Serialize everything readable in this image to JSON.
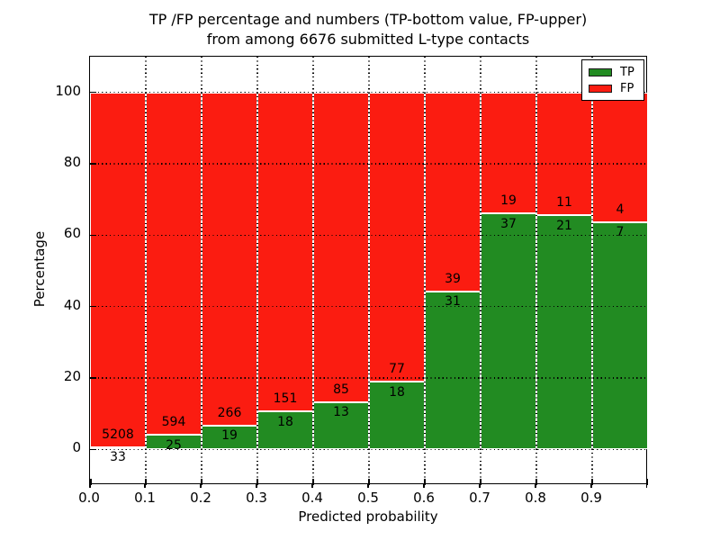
{
  "title": {
    "line1": "TP /FP percentage and numbers (TP-bottom value, FP-upper)",
    "line2": "from among 6676 submitted L-type contacts"
  },
  "axis": {
    "xlabel": "Predicted probability",
    "ylabel": "Percentage"
  },
  "legend": {
    "position": "upper right",
    "entries": [
      {
        "label": "TP",
        "color": "#228b22"
      },
      {
        "label": "FP",
        "color": "#fb1c11"
      }
    ]
  },
  "chart_data": {
    "type": "bar",
    "stacked": true,
    "title": "TP /FP percentage and numbers (TP-bottom value, FP-upper) from among 6676 submitted L-type contacts",
    "xlabel": "Predicted probability",
    "ylabel": "Percentage",
    "total_contacts": 6676,
    "xlim": [
      0.0,
      1.0
    ],
    "ylim": [
      -10,
      110
    ],
    "grid": true,
    "bin_width": 0.1,
    "x_tick_labels": [
      "0.0",
      "0.1",
      "0.2",
      "0.3",
      "0.4",
      "0.5",
      "0.6",
      "0.7",
      "0.8",
      "0.9"
    ],
    "y_ticks": [
      0,
      20,
      40,
      60,
      80,
      100
    ],
    "bins": [
      "0.0-0.1",
      "0.1-0.2",
      "0.2-0.3",
      "0.3-0.4",
      "0.4-0.5",
      "0.5-0.6",
      "0.6-0.7",
      "0.7-0.8",
      "0.8-0.9",
      "0.9-1.0"
    ],
    "series": [
      {
        "name": "TP",
        "color": "#228b22",
        "counts": [
          33,
          25,
          19,
          18,
          13,
          18,
          31,
          37,
          21,
          7
        ],
        "pct": [
          0.63,
          4.04,
          6.67,
          10.65,
          13.27,
          18.95,
          44.29,
          66.07,
          65.63,
          63.64
        ]
      },
      {
        "name": "FP",
        "color": "#fb1c11",
        "counts": [
          5208,
          594,
          266,
          151,
          85,
          77,
          39,
          19,
          11,
          4
        ],
        "pct": [
          99.37,
          95.96,
          93.33,
          89.35,
          86.73,
          81.05,
          55.71,
          33.93,
          34.37,
          36.36
        ]
      }
    ]
  }
}
